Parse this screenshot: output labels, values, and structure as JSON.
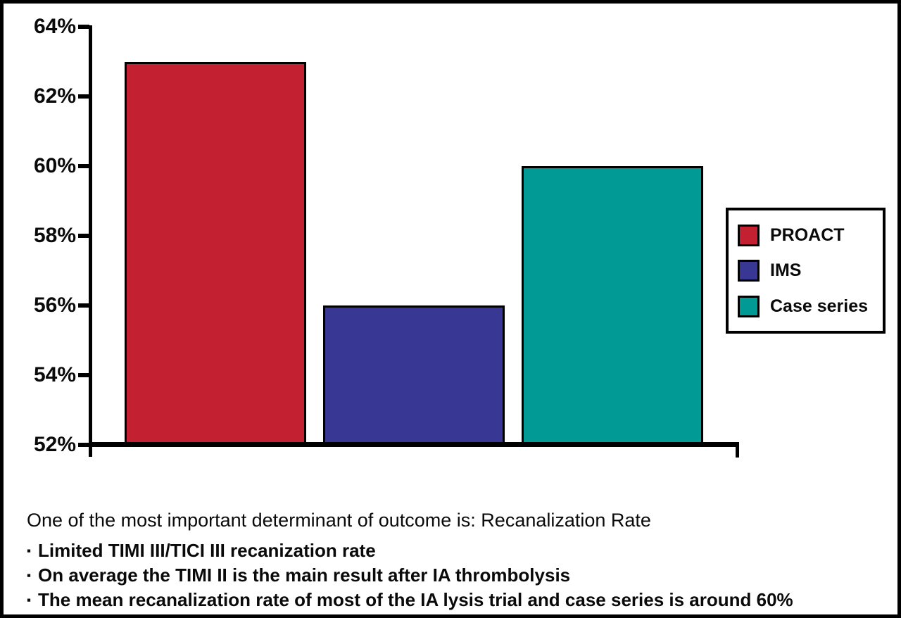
{
  "chart_data": {
    "type": "bar",
    "categories": [
      "PROACT",
      "IMS",
      "Case series"
    ],
    "values": [
      63,
      56,
      60
    ],
    "value_unit": "%",
    "title": "",
    "xlabel": "",
    "ylabel": "",
    "ylim": [
      52,
      64
    ],
    "ytick_interval": 2,
    "ytick_labels": [
      "52%",
      "54%",
      "56%",
      "58%",
      "60%",
      "62%",
      "64%"
    ],
    "grid": false,
    "series_colors": [
      "#c32031",
      "#383794",
      "#019a94"
    ],
    "bar_border_color": "#000000",
    "axis_color": "#000000",
    "legend": {
      "position": "right",
      "entries": [
        {
          "label": "PROACT",
          "color": "#c32031"
        },
        {
          "label": "IMS",
          "color": "#383794"
        },
        {
          "label": "Case series",
          "color": "#019a94"
        }
      ]
    }
  },
  "notes": {
    "heading": "One of the most important determinant of outcome is: Recanalization Rate",
    "bullet_char": "▪",
    "bullets": [
      "Limited TIMI III/TICI III recanization rate",
      "On average the TIMI II is the main result after IA thrombolysis",
      "The mean recanalization rate of most of the IA lysis trial and case series is around 60%"
    ]
  }
}
